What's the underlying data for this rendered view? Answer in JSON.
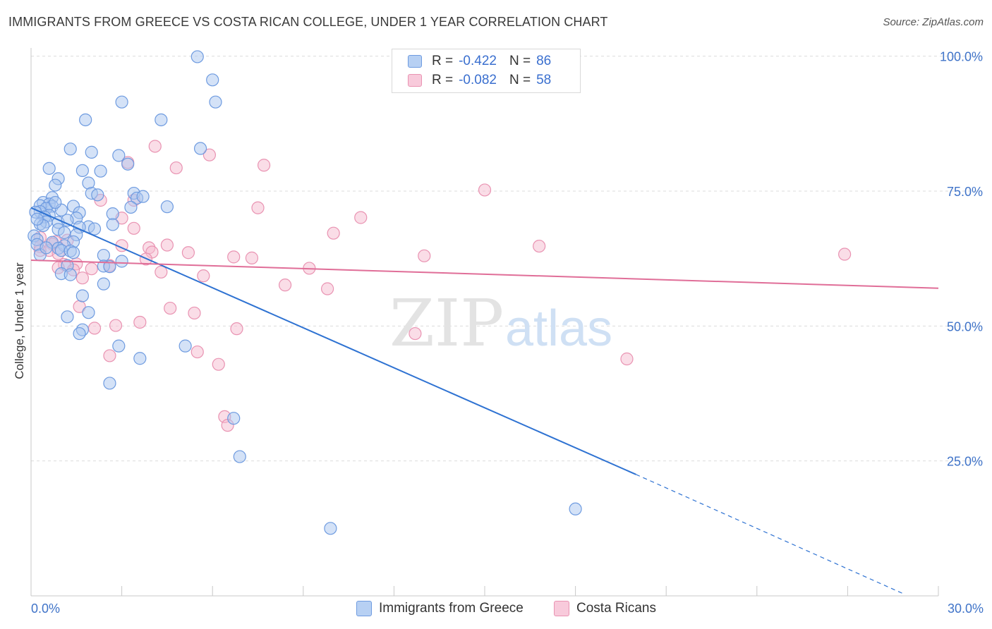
{
  "header": {
    "title": "IMMIGRANTS FROM GREECE VS COSTA RICAN COLLEGE, UNDER 1 YEAR CORRELATION CHART",
    "source": "Source: ZipAtlas.com"
  },
  "colors": {
    "blue_fill": "#a9c6ef",
    "blue_stroke": "#6e9be0",
    "blue_line": "#2e72d2",
    "pink_fill": "#f5bcd0",
    "pink_stroke": "#e993b2",
    "pink_line": "#e06e98",
    "grid": "#dcdcdc",
    "tick_text": "#3f73c8"
  },
  "legend": {
    "r_label": "R =",
    "n_label": "N =",
    "blue": {
      "r": "-0.422",
      "n": "86"
    },
    "pink": {
      "r": "-0.082",
      "n": "58"
    }
  },
  "watermark": {
    "zip": "ZIP",
    "atlas": "atlas"
  },
  "chart_data": {
    "type": "scatter",
    "title": "IMMIGRANTS FROM GREECE VS COSTA RICAN COLLEGE, UNDER 1 YEAR CORRELATION CHART",
    "xlabel": "",
    "ylabel": "College, Under 1 year",
    "xlim": [
      0,
      30
    ],
    "ylim": [
      0,
      101
    ],
    "x_tick_labels": {
      "min": "0.0%",
      "max": "30.0%"
    },
    "y_ticks": [
      {
        "value": 25,
        "label": "25.0%"
      },
      {
        "value": 50,
        "label": "50.0%"
      },
      {
        "value": 75,
        "label": "75.0%"
      },
      {
        "value": 100,
        "label": "100.0%"
      }
    ],
    "grid": true,
    "series": [
      {
        "name": "Immigrants from Greece",
        "color": "blue",
        "trend": {
          "x0": 0,
          "y0": 71.9,
          "x1": 20.0,
          "y1": 22.5,
          "dash_to_x": 28.8,
          "dash_to_y": 0.5
        },
        "points": [
          [
            5.5,
            99.9
          ],
          [
            6.0,
            95.6
          ],
          [
            3.0,
            91.5
          ],
          [
            6.1,
            91.5
          ],
          [
            1.8,
            88.2
          ],
          [
            4.3,
            88.2
          ],
          [
            1.3,
            82.8
          ],
          [
            5.6,
            82.9
          ],
          [
            2.0,
            82.2
          ],
          [
            2.9,
            81.6
          ],
          [
            3.2,
            80.0
          ],
          [
            0.6,
            79.2
          ],
          [
            1.7,
            78.8
          ],
          [
            2.3,
            78.7
          ],
          [
            0.9,
            77.3
          ],
          [
            1.9,
            76.5
          ],
          [
            0.8,
            76.1
          ],
          [
            2.0,
            74.6
          ],
          [
            3.4,
            74.6
          ],
          [
            0.7,
            73.8
          ],
          [
            3.5,
            73.7
          ],
          [
            0.4,
            72.9
          ],
          [
            0.6,
            72.6
          ],
          [
            0.3,
            72.3
          ],
          [
            0.7,
            72.2
          ],
          [
            1.4,
            72.2
          ],
          [
            4.5,
            72.1
          ],
          [
            3.3,
            72.0
          ],
          [
            0.5,
            71.8
          ],
          [
            1.0,
            71.5
          ],
          [
            0.3,
            71.2
          ],
          [
            0.15,
            71.1
          ],
          [
            1.6,
            71.0
          ],
          [
            2.7,
            70.8
          ],
          [
            0.6,
            70.5
          ],
          [
            0.45,
            70.2
          ],
          [
            1.5,
            70.0
          ],
          [
            0.5,
            69.3
          ],
          [
            0.9,
            69.2
          ],
          [
            0.3,
            68.9
          ],
          [
            2.7,
            68.8
          ],
          [
            0.4,
            68.6
          ],
          [
            1.9,
            68.4
          ],
          [
            1.6,
            68.3
          ],
          [
            2.1,
            68.0
          ],
          [
            0.9,
            67.9
          ],
          [
            1.1,
            67.3
          ],
          [
            1.5,
            66.9
          ],
          [
            0.1,
            66.7
          ],
          [
            0.2,
            66.0
          ],
          [
            1.4,
            65.6
          ],
          [
            0.7,
            65.5
          ],
          [
            0.2,
            65.1
          ],
          [
            1.1,
            64.9
          ],
          [
            0.9,
            64.4
          ],
          [
            1.0,
            64.0
          ],
          [
            1.3,
            63.9
          ],
          [
            1.4,
            63.6
          ],
          [
            0.3,
            63.2
          ],
          [
            2.4,
            63.1
          ],
          [
            3.0,
            62.0
          ],
          [
            1.2,
            61.2
          ],
          [
            2.4,
            61.1
          ],
          [
            2.6,
            61.0
          ],
          [
            1.0,
            59.7
          ],
          [
            1.3,
            59.5
          ],
          [
            2.4,
            57.8
          ],
          [
            1.7,
            55.6
          ],
          [
            1.9,
            52.5
          ],
          [
            1.2,
            51.7
          ],
          [
            1.7,
            49.3
          ],
          [
            1.6,
            48.6
          ],
          [
            2.9,
            46.3
          ],
          [
            5.1,
            46.3
          ],
          [
            3.6,
            44.0
          ],
          [
            2.6,
            39.4
          ],
          [
            6.7,
            32.9
          ],
          [
            6.9,
            25.8
          ],
          [
            18.0,
            16.1
          ],
          [
            9.9,
            12.5
          ],
          [
            0.2,
            69.8
          ],
          [
            0.8,
            72.9
          ],
          [
            1.2,
            69.6
          ],
          [
            0.5,
            64.5
          ],
          [
            2.2,
            74.3
          ],
          [
            3.7,
            74.0
          ]
        ]
      },
      {
        "name": "Costa Ricans",
        "color": "pink",
        "trend": {
          "x0": 0,
          "y0": 62.2,
          "x1": 30.0,
          "y1": 57.0
        },
        "points": [
          [
            4.1,
            83.3
          ],
          [
            5.9,
            81.7
          ],
          [
            3.2,
            80.3
          ],
          [
            4.8,
            79.3
          ],
          [
            7.7,
            79.8
          ],
          [
            15.0,
            75.2
          ],
          [
            3.4,
            73.3
          ],
          [
            2.3,
            73.3
          ],
          [
            7.5,
            71.9
          ],
          [
            10.9,
            70.1
          ],
          [
            3.0,
            70.0
          ],
          [
            3.4,
            68.1
          ],
          [
            10.0,
            67.2
          ],
          [
            0.3,
            66.4
          ],
          [
            1.2,
            65.9
          ],
          [
            0.8,
            65.6
          ],
          [
            0.7,
            65.2
          ],
          [
            4.5,
            65.0
          ],
          [
            3.0,
            64.9
          ],
          [
            0.3,
            64.7
          ],
          [
            3.9,
            64.5
          ],
          [
            0.3,
            64.0
          ],
          [
            0.6,
            64.0
          ],
          [
            4.0,
            63.7
          ],
          [
            5.2,
            63.6
          ],
          [
            0.9,
            63.4
          ],
          [
            13.0,
            63.0
          ],
          [
            16.8,
            64.8
          ],
          [
            6.7,
            62.8
          ],
          [
            7.3,
            62.6
          ],
          [
            3.8,
            62.4
          ],
          [
            1.5,
            61.5
          ],
          [
            1.1,
            61.4
          ],
          [
            2.6,
            61.2
          ],
          [
            0.9,
            60.8
          ],
          [
            9.2,
            60.7
          ],
          [
            2.0,
            60.6
          ],
          [
            1.4,
            60.4
          ],
          [
            4.3,
            60.0
          ],
          [
            5.7,
            59.3
          ],
          [
            1.7,
            58.9
          ],
          [
            8.4,
            57.6
          ],
          [
            9.8,
            56.9
          ],
          [
            1.6,
            53.6
          ],
          [
            4.6,
            53.3
          ],
          [
            5.4,
            52.4
          ],
          [
            3.6,
            50.7
          ],
          [
            2.8,
            50.1
          ],
          [
            6.8,
            49.5
          ],
          [
            2.1,
            49.6
          ],
          [
            12.7,
            48.6
          ],
          [
            5.5,
            45.2
          ],
          [
            2.6,
            44.5
          ],
          [
            19.7,
            43.9
          ],
          [
            6.2,
            42.9
          ],
          [
            6.4,
            33.2
          ],
          [
            6.5,
            31.6
          ],
          [
            26.9,
            63.3
          ]
        ]
      }
    ]
  }
}
